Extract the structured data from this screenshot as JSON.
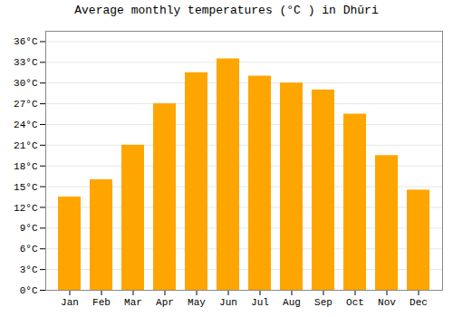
{
  "chart_data": {
    "type": "bar",
    "title": "Average monthly temperatures (°C ) in Dhūri",
    "categories": [
      "Jan",
      "Feb",
      "Mar",
      "Apr",
      "May",
      "Jun",
      "Jul",
      "Aug",
      "Sep",
      "Oct",
      "Nov",
      "Dec"
    ],
    "values": [
      13.5,
      16.0,
      21.0,
      27.0,
      31.5,
      33.5,
      31.0,
      30.0,
      29.0,
      25.5,
      19.5,
      14.5
    ],
    "color": "#FFA500",
    "ylim": [
      0,
      37.5
    ],
    "yticks": [
      {
        "value": 0,
        "label": "0°C"
      },
      {
        "value": 3,
        "label": "3°C"
      },
      {
        "value": 6,
        "label": "6°C"
      },
      {
        "value": 9,
        "label": "9°C"
      },
      {
        "value": 12,
        "label": "12°C"
      },
      {
        "value": 15,
        "label": "15°C"
      },
      {
        "value": 18,
        "label": "18°C"
      },
      {
        "value": 21,
        "label": "21°C"
      },
      {
        "value": 24,
        "label": "24°C"
      },
      {
        "value": 27,
        "label": "27°C"
      },
      {
        "value": 30,
        "label": "30°C"
      },
      {
        "value": 33,
        "label": "33°C"
      },
      {
        "value": 36,
        "label": "36°C"
      }
    ],
    "grid": true
  }
}
